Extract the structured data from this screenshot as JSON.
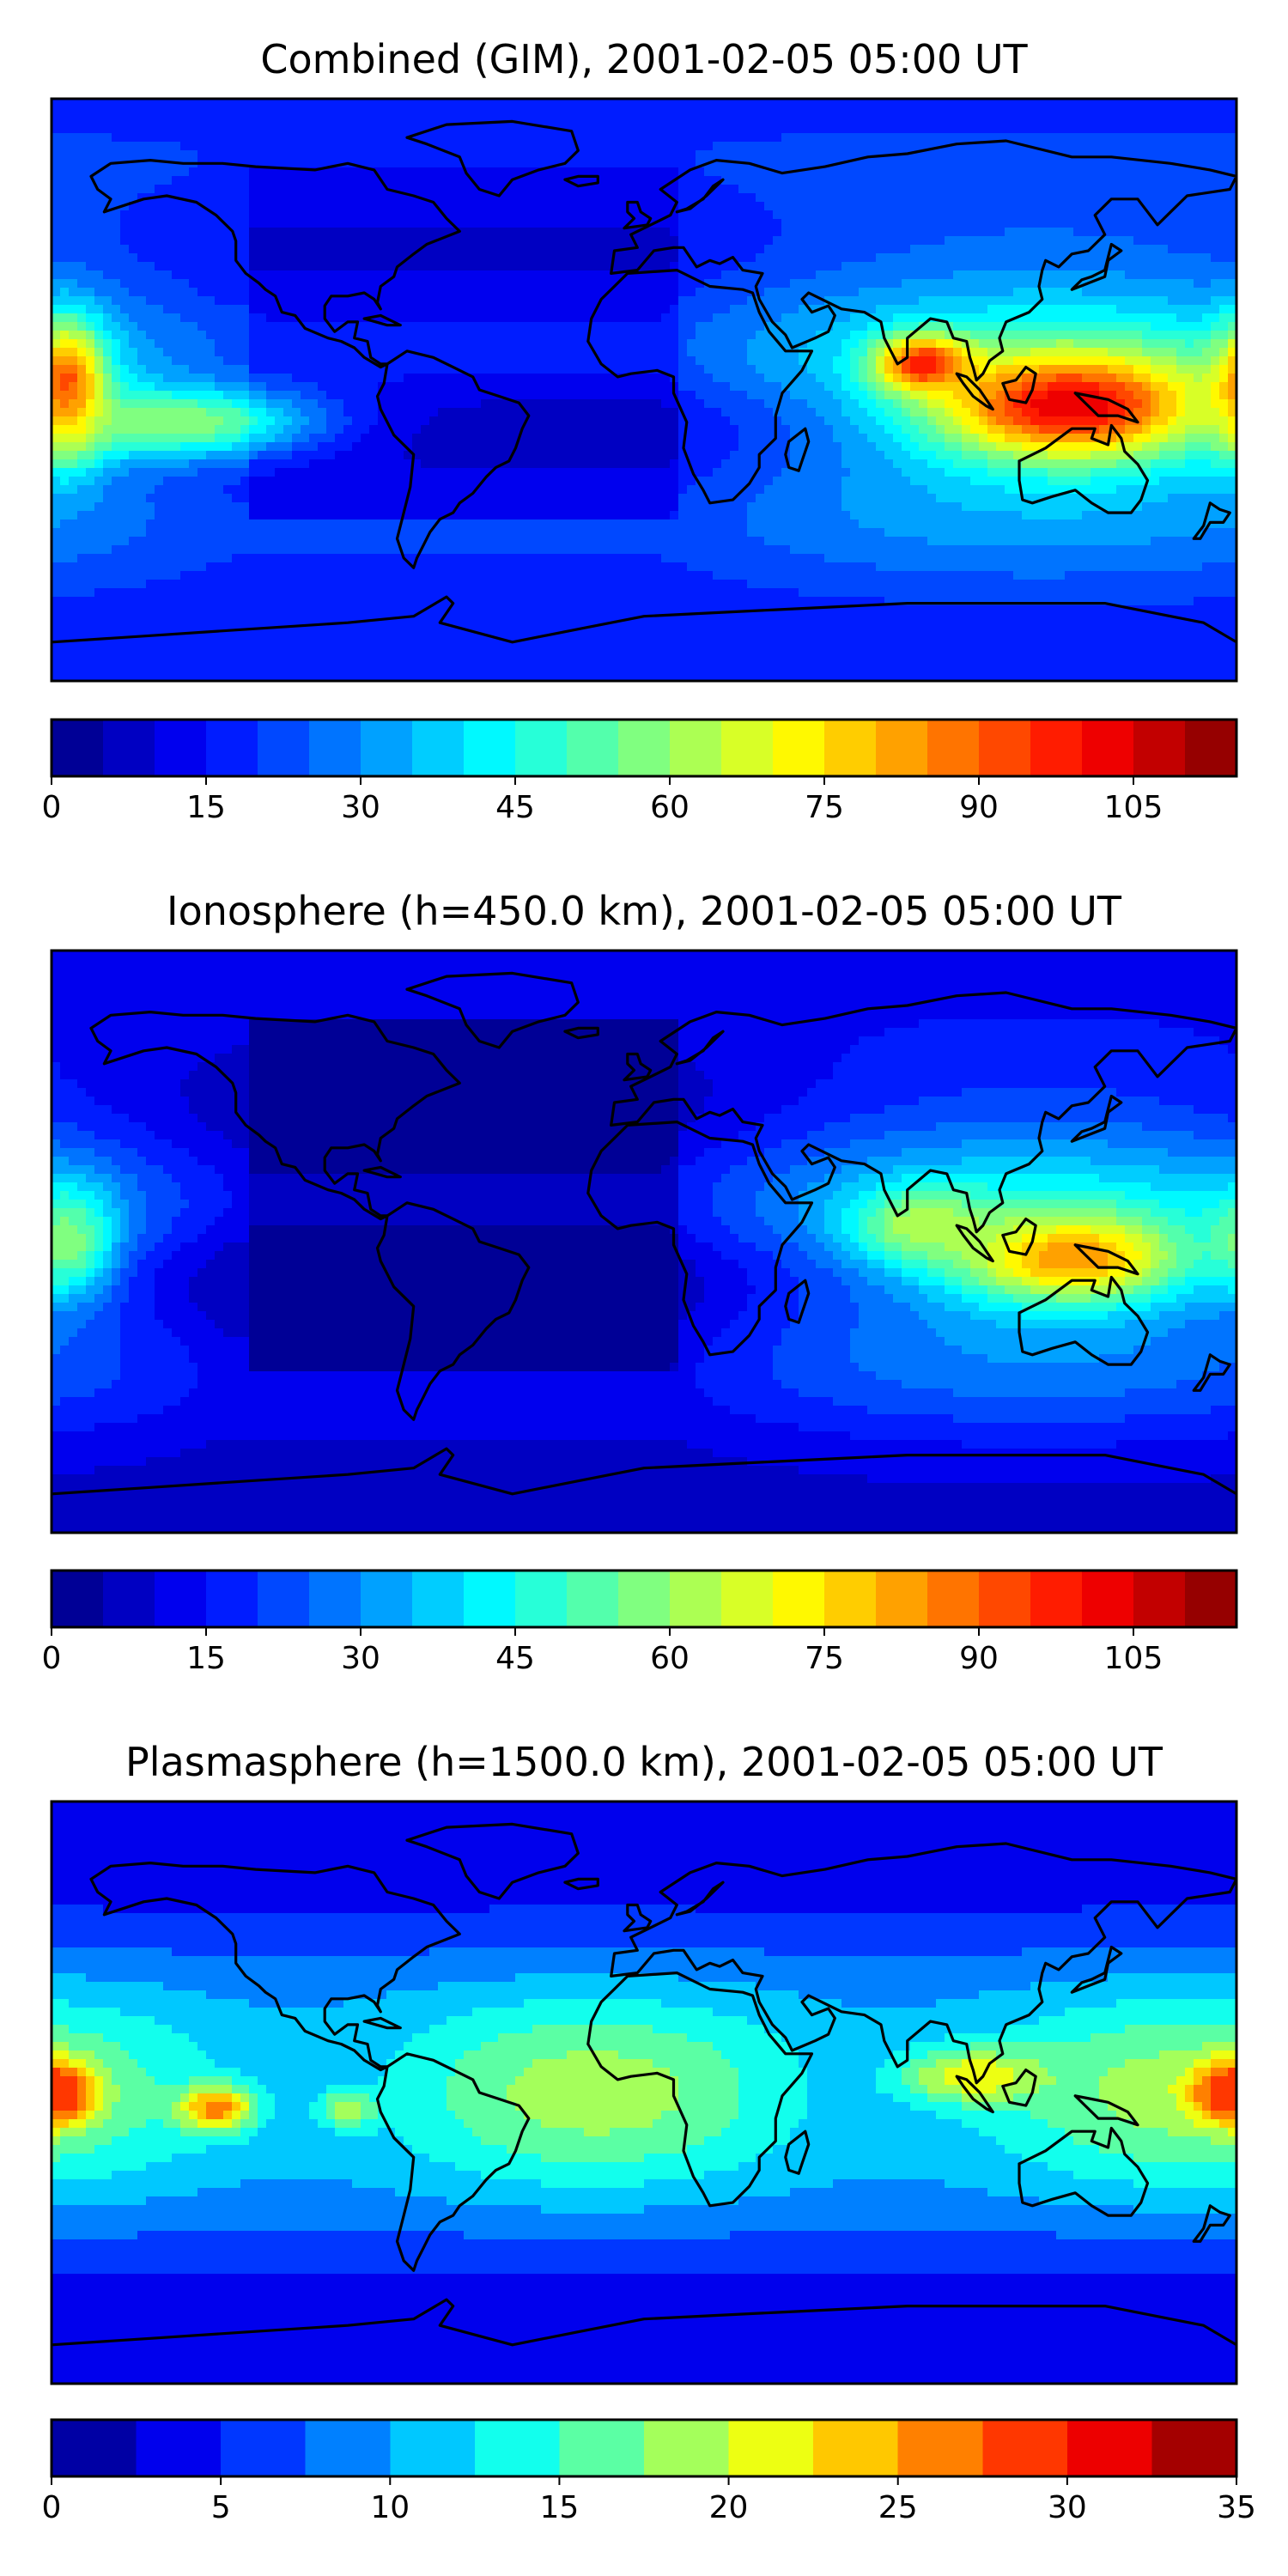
{
  "colormap": "jet",
  "projection": "Plate Carree (cylindrical)",
  "panels": [
    {
      "id": "combined",
      "title": "Combined (GIM), 2001-02-05 05:00 UT",
      "map": {
        "extent": {
          "lon": [
            -180,
            180
          ],
          "lat": [
            -90,
            90
          ]
        },
        "coastlines": true
      },
      "colorbar": {
        "orientation": "horizontal",
        "vmin": 0,
        "vmax": 115,
        "levels": [
          0,
          5,
          10,
          15,
          20,
          25,
          30,
          35,
          40,
          45,
          50,
          55,
          60,
          65,
          70,
          75,
          80,
          85,
          90,
          95,
          100,
          105,
          110,
          115
        ],
        "ticks": [
          0,
          15,
          30,
          45,
          60,
          75,
          90,
          105
        ],
        "tick_labels": [
          "0",
          "15",
          "30",
          "45",
          "60",
          "75",
          "90",
          "105"
        ]
      },
      "features": [
        {
          "lon": 130,
          "lat": -5,
          "value": 105,
          "sx": 30,
          "sy": 12,
          "weight": 1.0
        },
        {
          "lon": 85,
          "lat": 8,
          "value": 100,
          "sx": 10,
          "sy": 6,
          "weight": 1.0
        },
        {
          "lon": -175,
          "lat": 0,
          "value": 95,
          "sx": 8,
          "sy": 14,
          "weight": 1.0
        },
        {
          "lon": -140,
          "lat": -10,
          "value": 70,
          "sx": 30,
          "sy": 8,
          "weight": 0.8
        }
      ]
    },
    {
      "id": "ionosphere",
      "title": "Ionosphere  (h=450.0 km), 2001-02-05 05:00 UT",
      "map": {
        "extent": {
          "lon": [
            -180,
            180
          ],
          "lat": [
            -90,
            90
          ]
        },
        "coastlines": true
      },
      "colorbar": {
        "orientation": "horizontal",
        "vmin": 0,
        "vmax": 115,
        "levels": [
          0,
          5,
          10,
          15,
          20,
          25,
          30,
          35,
          40,
          45,
          50,
          55,
          60,
          65,
          70,
          75,
          80,
          85,
          90,
          95,
          100,
          105,
          110,
          115
        ],
        "ticks": [
          0,
          15,
          30,
          45,
          60,
          75,
          90,
          105
        ],
        "tick_labels": [
          "0",
          "15",
          "30",
          "45",
          "60",
          "75",
          "90",
          "105"
        ]
      },
      "features": [
        {
          "lon": 130,
          "lat": -5,
          "value": 85,
          "sx": 25,
          "sy": 10,
          "weight": 1.0
        },
        {
          "lon": 85,
          "lat": 5,
          "value": 70,
          "sx": 15,
          "sy": 8,
          "weight": 0.8
        },
        {
          "lon": -175,
          "lat": 0,
          "value": 65,
          "sx": 10,
          "sy": 12,
          "weight": 0.8
        }
      ]
    },
    {
      "id": "plasmasphere",
      "title": "Plasmasphere (h=1500.0 km), 2001-02-05 05:00 UT",
      "map": {
        "extent": {
          "lon": [
            -180,
            180
          ],
          "lat": [
            -90,
            90
          ]
        },
        "coastlines": true
      },
      "colorbar": {
        "orientation": "horizontal",
        "vmin": 0,
        "vmax": 35,
        "levels": [
          0,
          2.5,
          5,
          7.5,
          10,
          12.5,
          15,
          17.5,
          20,
          22.5,
          25,
          27.5,
          30,
          32.5,
          35
        ],
        "ticks": [
          0,
          5,
          10,
          15,
          20,
          25,
          30,
          35
        ],
        "tick_labels": [
          "0",
          "5",
          "10",
          "15",
          "20",
          "25",
          "30",
          "35"
        ]
      },
      "features": [
        {
          "lon": -180,
          "lat": 0,
          "value": 30,
          "sx": 8,
          "sy": 6,
          "weight": 1.0
        },
        {
          "lon": 180,
          "lat": 0,
          "value": 30,
          "sx": 8,
          "sy": 6,
          "weight": 1.0
        },
        {
          "lon": -130,
          "lat": -5,
          "value": 27,
          "sx": 8,
          "sy": 5,
          "weight": 1.0
        },
        {
          "lon": -90,
          "lat": -5,
          "value": 22,
          "sx": 6,
          "sy": 4,
          "weight": 0.8
        },
        {
          "lon": 100,
          "lat": 5,
          "value": 25,
          "sx": 15,
          "sy": 6,
          "weight": 0.8
        }
      ]
    }
  ],
  "colors": {
    "coastline": "#000000",
    "frame": "#000000",
    "background": "#ffffff"
  }
}
